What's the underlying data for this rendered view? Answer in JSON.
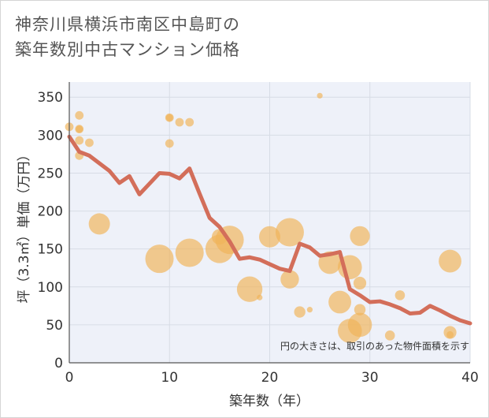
{
  "title_line1": "神奈川県横浜市南区中島町の",
  "title_line2": "築年数別中古マンション価格",
  "note": "円の大きさは、取引のあった物件面積を示す",
  "colors": {
    "bubble": "#f0b45a",
    "line": "#d36e5a",
    "grid": "#d7dce6",
    "plot_bg": "#eef1f9"
  },
  "chart_data": {
    "type": "scatter",
    "title": "神奈川県横浜市南区中島町の築年数別中古マンション価格",
    "xlabel": "築年数（年）",
    "ylabel": "坪（3.3㎡）単価（万円）",
    "xlim": [
      0,
      40
    ],
    "ylim": [
      0,
      370
    ],
    "xticks": [
      0,
      10,
      20,
      30,
      40
    ],
    "yticks": [
      0,
      50,
      100,
      150,
      200,
      250,
      300,
      350
    ],
    "bubbles": [
      {
        "x": 0,
        "y": 311,
        "size": 1.2
      },
      {
        "x": 1,
        "y": 326,
        "size": 1.2
      },
      {
        "x": 1,
        "y": 308,
        "size": 1.2
      },
      {
        "x": 1,
        "y": 308,
        "size": 1.0
      },
      {
        "x": 1,
        "y": 293,
        "size": 1.2
      },
      {
        "x": 1,
        "y": 273,
        "size": 1.2
      },
      {
        "x": 2,
        "y": 290,
        "size": 1.2
      },
      {
        "x": 3,
        "y": 183,
        "size": 3.0
      },
      {
        "x": 9,
        "y": 137,
        "size": 4.0
      },
      {
        "x": 10,
        "y": 323,
        "size": 1.2
      },
      {
        "x": 10,
        "y": 323,
        "size": 1.0
      },
      {
        "x": 10,
        "y": 289,
        "size": 1.2
      },
      {
        "x": 11,
        "y": 317,
        "size": 1.2
      },
      {
        "x": 12,
        "y": 317,
        "size": 1.2
      },
      {
        "x": 12,
        "y": 145,
        "size": 4.0
      },
      {
        "x": 15,
        "y": 166,
        "size": 2.2
      },
      {
        "x": 15,
        "y": 150,
        "size": 4.0
      },
      {
        "x": 16,
        "y": 162,
        "size": 4.0
      },
      {
        "x": 18,
        "y": 97,
        "size": 3.6
      },
      {
        "x": 19,
        "y": 86,
        "size": 0.8
      },
      {
        "x": 20,
        "y": 166,
        "size": 3.0
      },
      {
        "x": 22,
        "y": 172,
        "size": 4.0
      },
      {
        "x": 22,
        "y": 110,
        "size": 2.6
      },
      {
        "x": 23,
        "y": 67,
        "size": 1.6
      },
      {
        "x": 24,
        "y": 70,
        "size": 0.8
      },
      {
        "x": 25,
        "y": 352,
        "size": 0.8
      },
      {
        "x": 26,
        "y": 132,
        "size": 3.2
      },
      {
        "x": 27,
        "y": 80,
        "size": 3.2
      },
      {
        "x": 28,
        "y": 126,
        "size": 3.4
      },
      {
        "x": 28,
        "y": 42,
        "size": 3.4
      },
      {
        "x": 29,
        "y": 167,
        "size": 2.8
      },
      {
        "x": 29,
        "y": 105,
        "size": 1.8
      },
      {
        "x": 29,
        "y": 70,
        "size": 1.6
      },
      {
        "x": 29,
        "y": 50,
        "size": 3.4
      },
      {
        "x": 32,
        "y": 36,
        "size": 1.4
      },
      {
        "x": 33,
        "y": 89,
        "size": 1.4
      },
      {
        "x": 38,
        "y": 40,
        "size": 1.8
      },
      {
        "x": 38,
        "y": 37,
        "size": 1.0
      },
      {
        "x": 38,
        "y": 134,
        "size": 3.2
      }
    ],
    "trend": {
      "x": [
        0,
        1,
        2,
        3,
        4,
        5,
        6,
        7,
        8,
        9,
        10,
        11,
        12,
        13,
        14,
        15,
        16,
        17,
        18,
        19,
        20,
        21,
        22,
        23,
        24,
        25,
        26,
        27,
        28,
        29,
        30,
        31,
        32,
        33,
        34,
        35,
        36,
        37,
        38,
        39,
        40
      ],
      "y": [
        298,
        278,
        273,
        263,
        253,
        237,
        246,
        222,
        236,
        250,
        249,
        243,
        256,
        223,
        191,
        179,
        160,
        137,
        139,
        136,
        130,
        124,
        121,
        157,
        152,
        141,
        143,
        146,
        97,
        89,
        80,
        81,
        77,
        72,
        65,
        66,
        75,
        69,
        62,
        56,
        52
      ]
    }
  }
}
